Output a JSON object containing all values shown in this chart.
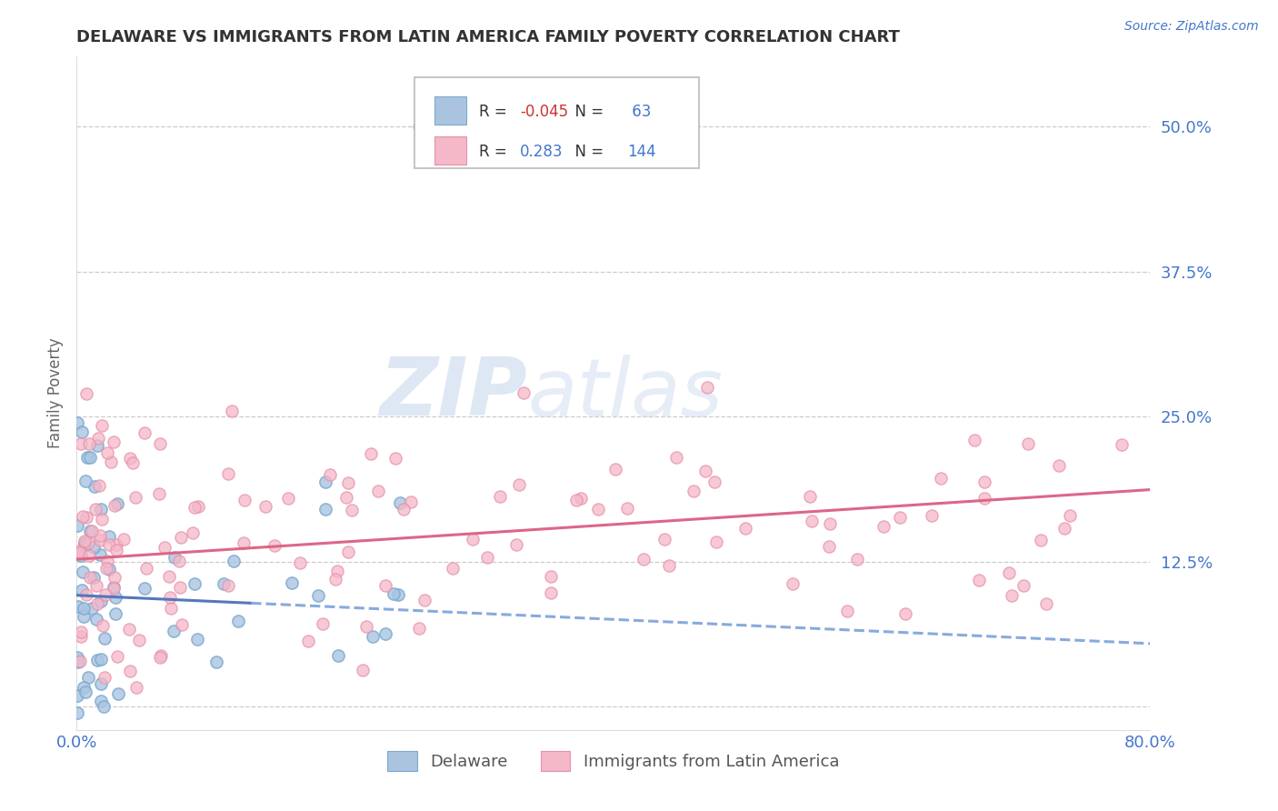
{
  "title": "DELAWARE VS IMMIGRANTS FROM LATIN AMERICA FAMILY POVERTY CORRELATION CHART",
  "source": "Source: ZipAtlas.com",
  "ylabel": "Family Poverty",
  "xlim": [
    0.0,
    0.8
  ],
  "ylim": [
    -0.02,
    0.56
  ],
  "yticks": [
    0.0,
    0.125,
    0.25,
    0.375,
    0.5
  ],
  "ytick_labels": [
    "",
    "12.5%",
    "25.0%",
    "37.5%",
    "50.0%"
  ],
  "label1": "Delaware",
  "label2": "Immigrants from Latin America",
  "color1": "#aac4e0",
  "color1_edge": "#7aaacf",
  "color2": "#f4b8c8",
  "color2_edge": "#e890aa",
  "trendline1_solid_color": "#5577bb",
  "trendline1_dash_color": "#88aadd",
  "trendline2_color": "#dd6688",
  "title_color": "#333333",
  "axis_label_color": "#4477cc",
  "watermark_zip": "ZIP",
  "watermark_atlas": "atlas",
  "background_color": "#ffffff",
  "grid_color": "#cccccc",
  "R1": -0.045,
  "N1": 63,
  "R2": 0.283,
  "N2": 144,
  "legend_text_color_R": "#dd4444",
  "legend_text_color_N": "#333333"
}
